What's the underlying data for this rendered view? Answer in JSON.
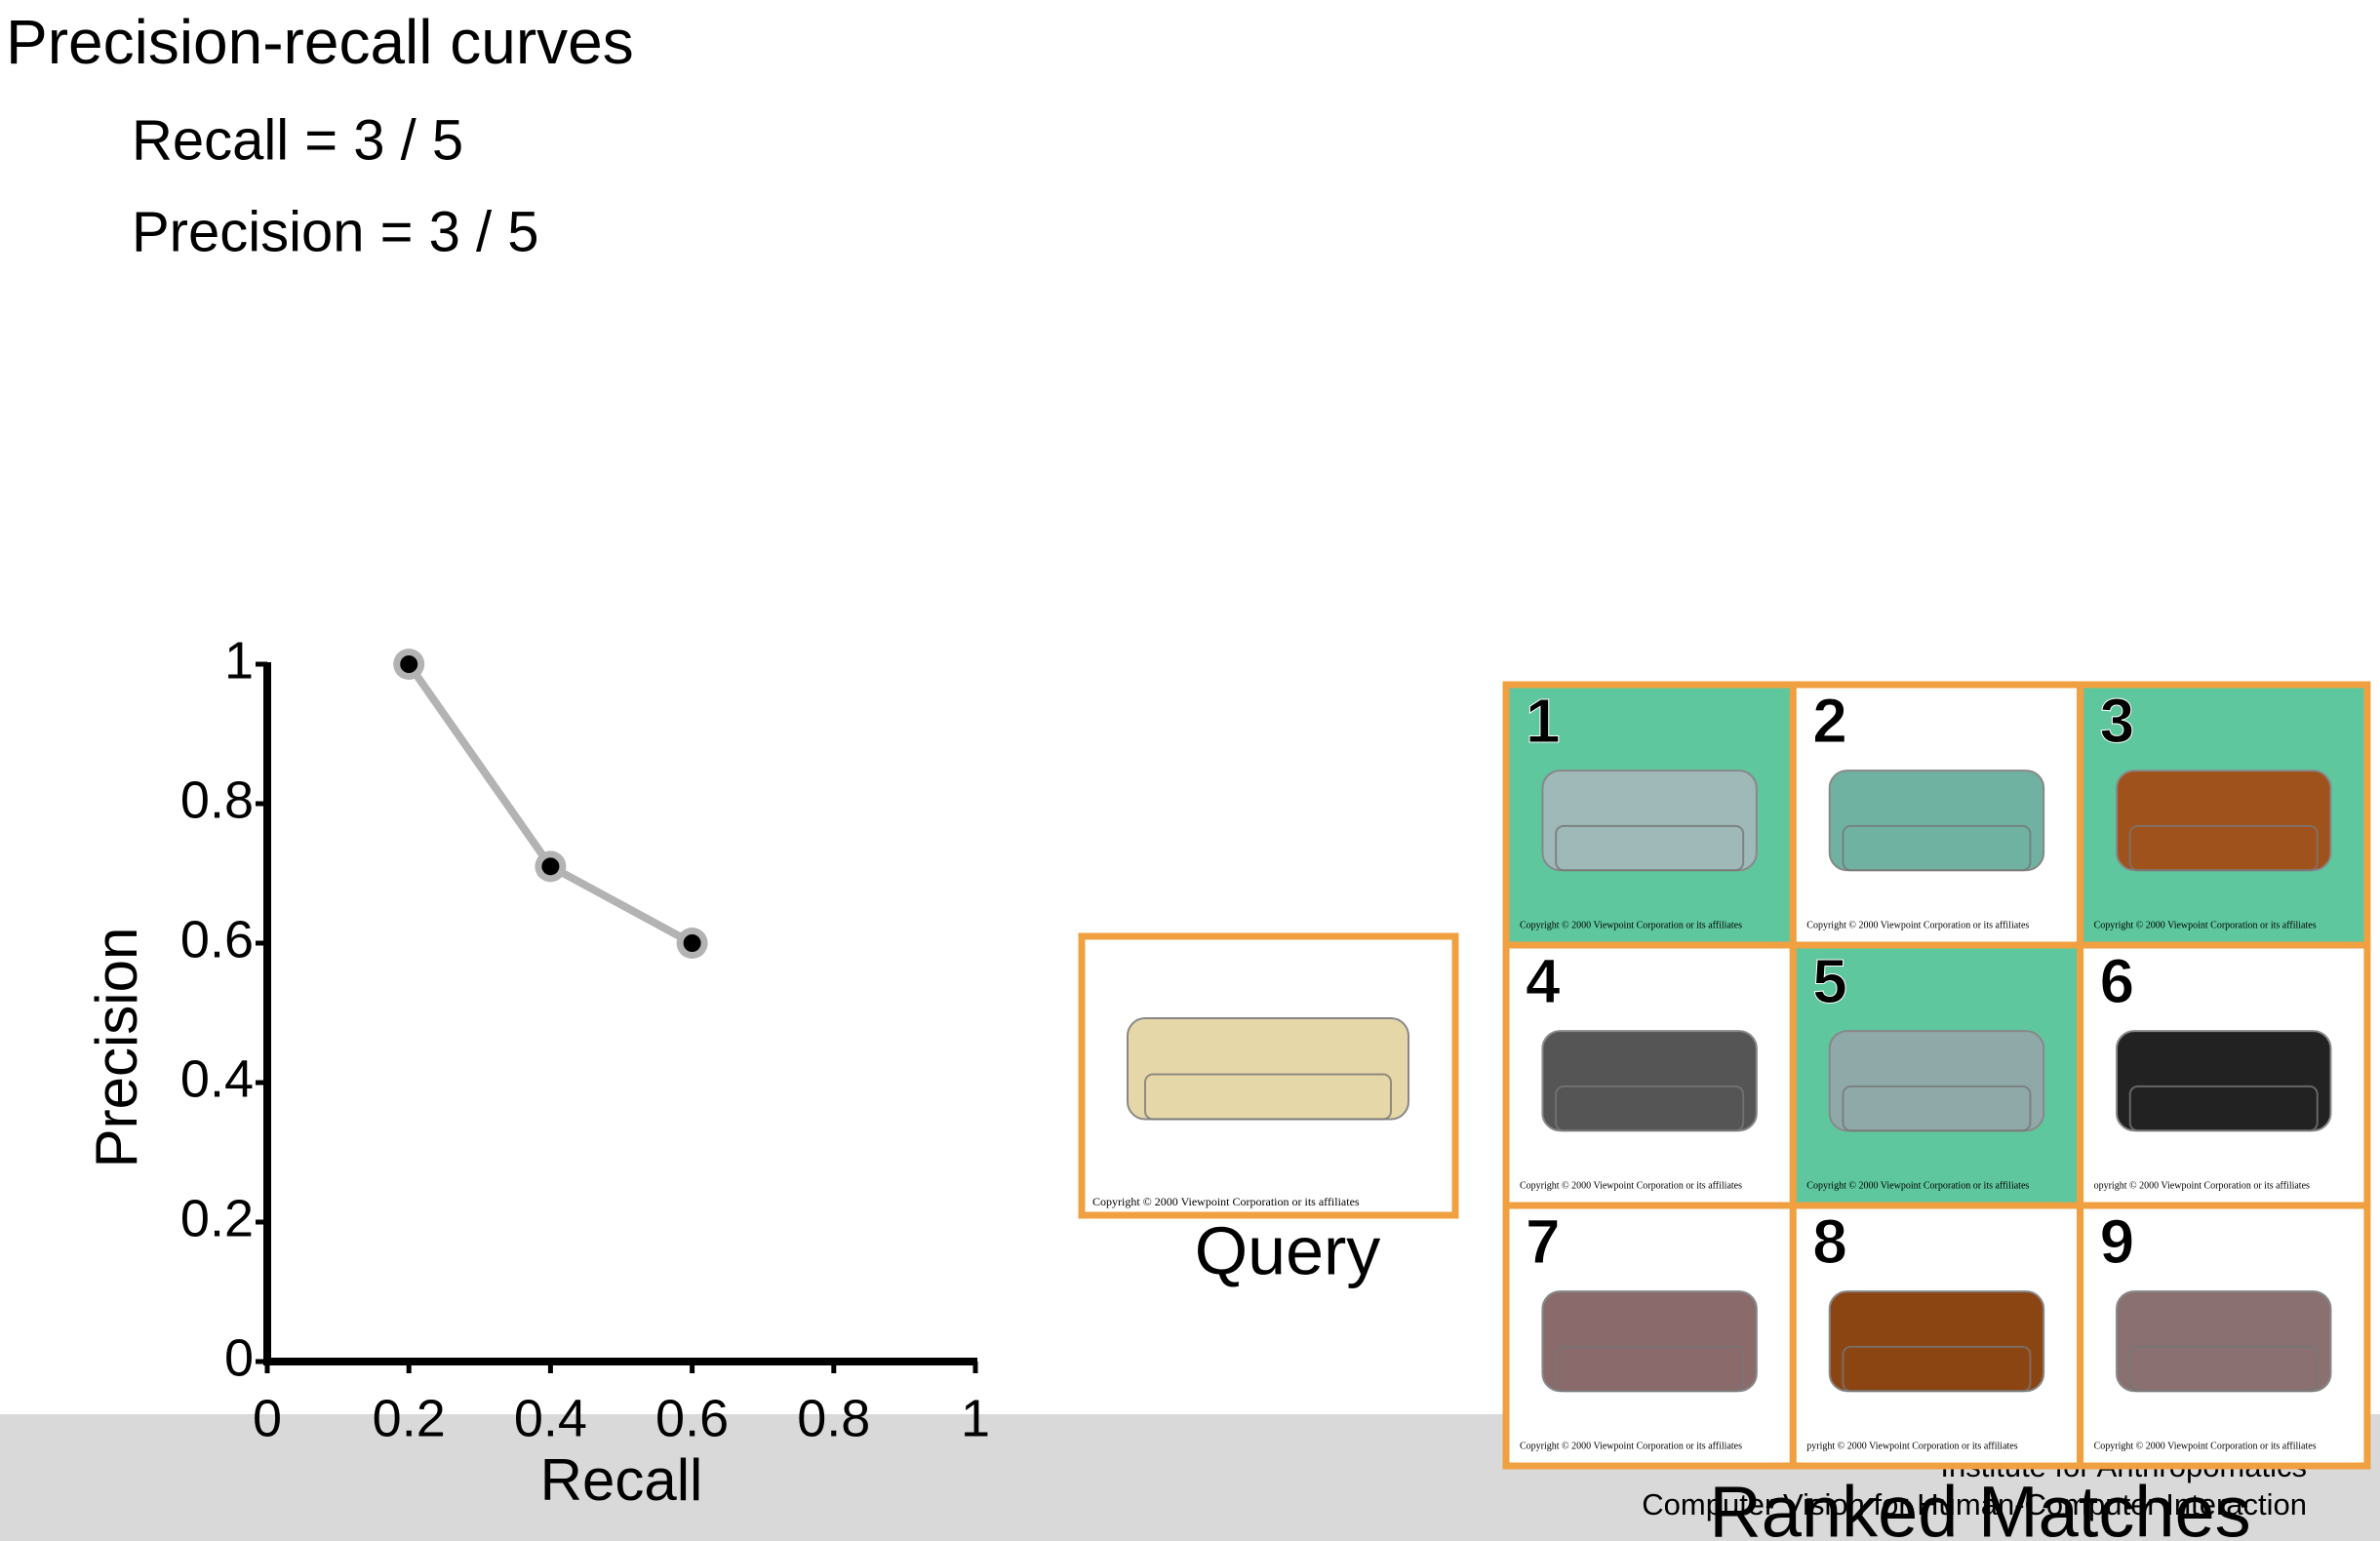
{
  "chart_data": {
    "type": "scatter",
    "connect": true,
    "x": [
      0.2,
      0.4,
      0.6
    ],
    "values": [
      1,
      0.71,
      0.6
    ],
    "xlabel": "Recall",
    "ylabel": "Precision",
    "xlim": [
      0,
      1
    ],
    "ylim": [
      0,
      1
    ],
    "xticks": [
      0,
      0.2,
      0.4,
      0.6,
      0.8,
      1
    ],
    "yticks": [
      0,
      0.2,
      0.4,
      0.6,
      0.8,
      1
    ],
    "line_color": "#b3b3b3",
    "marker_color": "#000000",
    "grid": false
  },
  "slide": {
    "title": "Precision-recall curves",
    "lines": [
      "Recall = 3 / 5",
      "Precision = 3 / 5"
    ]
  },
  "query": {
    "label": "Query",
    "caption": "Copyright © 2000  Viewpoint Corporation or its affiliates"
  },
  "matches": {
    "label": "Ranked Matches",
    "items": [
      {
        "rank": "1",
        "caption": "Copyright © 2000  Viewpoint Corporation or its affiliates"
      },
      {
        "rank": "2",
        "caption": "Copyright © 2000  Viewpoint Corporation or its affiliates"
      },
      {
        "rank": "3",
        "caption": "Copyright © 2000  Viewpoint Corporation or its affiliates"
      },
      {
        "rank": "4",
        "caption": "Copyright © 2000  Viewpoint Corporation or its affiliates"
      },
      {
        "rank": "5",
        "caption": "Copyright © 2000  Viewpoint Corporation or its affiliates"
      },
      {
        "rank": "6",
        "caption": "opyright © 2000  Viewpoint Corporation or its affiliates"
      },
      {
        "rank": "7",
        "caption": "Copyright © 2000  Viewpoint Corporation or its affiliates"
      },
      {
        "rank": "8",
        "caption": "pyright © 2000  Viewpoint Corporation or its affiliates"
      },
      {
        "rank": "9",
        "caption": "Copyright © 2000  Viewpoint Corporation or its affiliates"
      }
    ]
  },
  "footer": {
    "line1": "Institute for Anthropomatics",
    "line2": "Computer Vision for Human-Computer Interaction"
  }
}
